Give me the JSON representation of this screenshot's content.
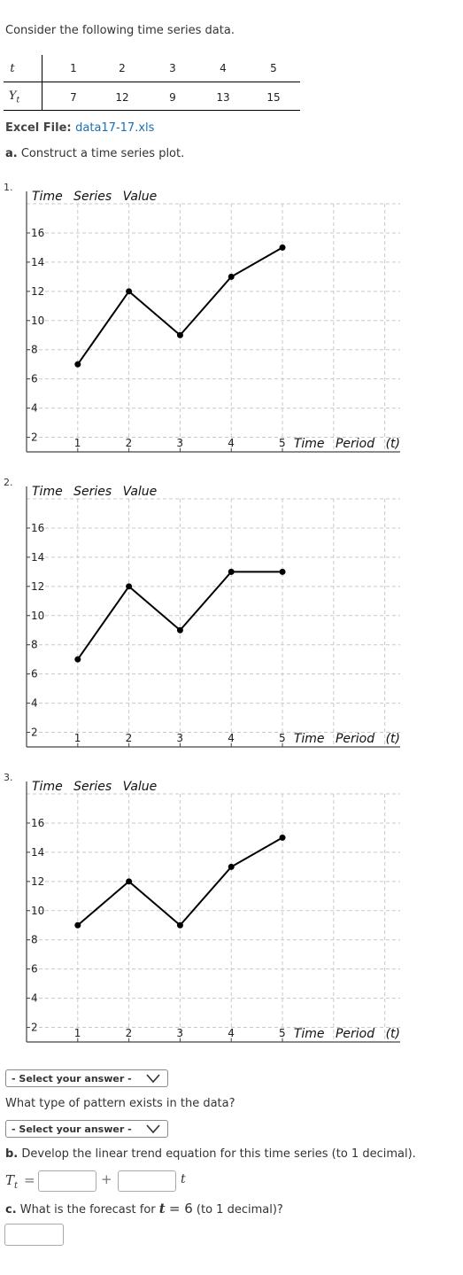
{
  "intro": "Consider the following time series data.",
  "table": {
    "row1_label": "t",
    "row2_label": "Y",
    "row2_sub": "t",
    "t": [
      "1",
      "2",
      "3",
      "4",
      "5"
    ],
    "y": [
      "7",
      "12",
      "9",
      "13",
      "15"
    ]
  },
  "excel": {
    "label": "Excel File:",
    "link": "data17-17.xls"
  },
  "part_a": {
    "letter": "a.",
    "text": "Construct a time series plot."
  },
  "options": [
    {
      "number": "1."
    },
    {
      "number": "2."
    },
    {
      "number": "3."
    }
  ],
  "chart_data": [
    {
      "type": "line",
      "ylabel": "Time Series Value",
      "xlabel": "Time Period (t)",
      "x": [
        1,
        2,
        3,
        4,
        5
      ],
      "y": [
        7,
        12,
        9,
        13,
        15
      ],
      "xticks": [
        "1",
        "2",
        "3",
        "4",
        "5"
      ],
      "yticks": [
        "2",
        "4",
        "6",
        "8",
        "10",
        "12",
        "14",
        "16"
      ],
      "ylim": [
        1,
        18
      ],
      "xlim": [
        0,
        7.3
      ],
      "grid": true
    },
    {
      "type": "line",
      "ylabel": "Time Series Value",
      "xlabel": "Time Period (t)",
      "x": [
        1,
        2,
        3,
        4,
        5
      ],
      "y": [
        7,
        12,
        9,
        13,
        13
      ],
      "xticks": [
        "1",
        "2",
        "3",
        "4",
        "5"
      ],
      "yticks": [
        "2",
        "4",
        "6",
        "8",
        "10",
        "12",
        "14",
        "16"
      ],
      "ylim": [
        1,
        18
      ],
      "xlim": [
        0,
        7.3
      ],
      "grid": true
    },
    {
      "type": "line",
      "ylabel": "Time Series Value",
      "xlabel": "Time Period (t)",
      "x": [
        1,
        2,
        3,
        4,
        5
      ],
      "y": [
        9,
        12,
        9,
        13,
        15
      ],
      "xticks": [
        "1",
        "2",
        "3",
        "4",
        "5"
      ],
      "yticks": [
        "2",
        "4",
        "6",
        "8",
        "10",
        "12",
        "14",
        "16"
      ],
      "ylim": [
        1,
        18
      ],
      "xlim": [
        0,
        7.3
      ],
      "grid": true
    }
  ],
  "select1": {
    "label": "- Select your answer -"
  },
  "pattern_question": "What type of pattern exists in the data?",
  "select2": {
    "label": "- Select your answer -"
  },
  "part_b": {
    "letter": "b.",
    "text": "Develop the linear trend equation for this time series (to 1 decimal)."
  },
  "equation": {
    "lhs": "T",
    "lhs_sub": "t",
    "equals": "=",
    "plus": "+",
    "var": "t"
  },
  "part_c": {
    "letter": "c.",
    "text_before": "What is the forecast for",
    "var": "t",
    "eq": "= 6",
    "text_after": "(to 1 decimal)?"
  },
  "colors": {
    "link": "#1a6fb3",
    "line": "#000000",
    "grid": "#c8c8c8"
  }
}
